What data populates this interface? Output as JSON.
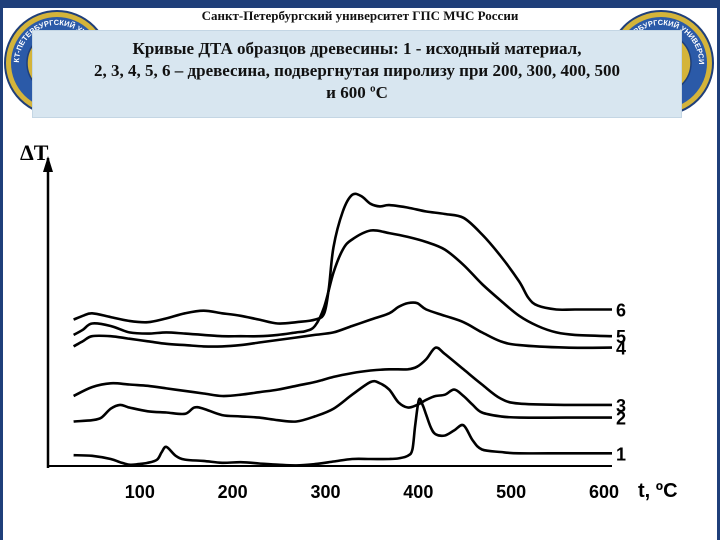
{
  "header": {
    "institution": "Санкт-Петербургский университет ГПС МЧС России"
  },
  "emblems": {
    "left_text": "САНКТ-ПЕТЕРБУРГСКИЙ УНИВЕРСИТЕТ",
    "right_text": "САНКТ-ПЕТЕРБУРГСКИЙ УНИВЕРСИТЕТ"
  },
  "title": {
    "text": "Кривые ДТА образцов древесины: 1 - исходный материал,\n2, 3, 4, 5, 6 – древесина, подвергнутая пиролизу при 200, 300, 400, 500\nи 600 ºС"
  },
  "colors": {
    "frame": "#1f3f7a",
    "title_box": "#d8e6f0",
    "curve": "#000000",
    "emblem_ring": "#2b5aa8",
    "emblem_gold": "#d4b43a"
  },
  "chart_data": {
    "type": "line",
    "title": "",
    "xlabel": "t, ºC",
    "ylabel": "ΔT",
    "xlim": [
      0,
      600
    ],
    "xticks": [
      "100",
      "200",
      "300",
      "400",
      "500",
      "600"
    ],
    "xtick_values": [
      100,
      200,
      300,
      400,
      500,
      600
    ],
    "grid": false,
    "yaxis_numeric": false,
    "series": [
      {
        "name": "1",
        "x": [
          20,
          40,
          60,
          70,
          80,
          90,
          100,
          110,
          115,
          120,
          130,
          140,
          160,
          180,
          200,
          220,
          240,
          260,
          280,
          300,
          320,
          340,
          360,
          370,
          380,
          385,
          388,
          392,
          396,
          400,
          405,
          410,
          420,
          430,
          440,
          450,
          460,
          480,
          500,
          550,
          600
        ],
        "y": [
          0.85,
          0.8,
          0.55,
          0.3,
          0.1,
          0.15,
          0.25,
          0.5,
          1.1,
          1.5,
          0.8,
          0.5,
          0.4,
          0.25,
          0.3,
          0.2,
          0.1,
          0.05,
          0.15,
          0.35,
          0.55,
          0.55,
          0.55,
          0.6,
          0.8,
          1.3,
          3.2,
          5.2,
          4.8,
          4.0,
          3.0,
          2.5,
          2.4,
          2.8,
          3.2,
          2.0,
          1.3,
          1.1,
          1.0,
          1.0,
          1.0
        ]
      },
      {
        "name": "2",
        "x": [
          20,
          40,
          50,
          60,
          70,
          80,
          100,
          120,
          140,
          150,
          160,
          180,
          200,
          220,
          240,
          260,
          280,
          300,
          320,
          340,
          350,
          360,
          370,
          380,
          390,
          400,
          410,
          420,
          430,
          440,
          450,
          460,
          480,
          500,
          550,
          600
        ],
        "y": [
          3.5,
          3.6,
          3.8,
          4.5,
          4.8,
          4.6,
          4.3,
          4.2,
          4.1,
          4.6,
          4.5,
          4.0,
          3.9,
          3.8,
          3.6,
          3.5,
          3.9,
          4.5,
          5.6,
          6.6,
          6.5,
          6.0,
          5.0,
          4.6,
          4.8,
          5.2,
          5.5,
          5.6,
          6.0,
          5.5,
          4.8,
          4.2,
          3.9,
          3.8,
          3.8,
          3.8
        ]
      },
      {
        "name": "3",
        "x": [
          20,
          40,
          60,
          80,
          100,
          120,
          140,
          160,
          180,
          200,
          220,
          240,
          260,
          280,
          300,
          320,
          340,
          360,
          380,
          390,
          400,
          410,
          420,
          440,
          460,
          480,
          500,
          550,
          600
        ],
        "y": [
          5.5,
          6.2,
          6.5,
          6.4,
          6.3,
          6.1,
          5.9,
          5.7,
          5.5,
          5.6,
          5.8,
          6.0,
          6.3,
          6.6,
          7.0,
          7.3,
          7.5,
          7.6,
          7.6,
          7.8,
          8.4,
          9.3,
          8.8,
          7.6,
          6.4,
          5.3,
          4.9,
          4.8,
          4.8
        ]
      },
      {
        "name": "4",
        "x": [
          20,
          30,
          40,
          60,
          80,
          100,
          120,
          140,
          160,
          180,
          200,
          220,
          240,
          260,
          280,
          300,
          320,
          340,
          360,
          370,
          380,
          390,
          400,
          420,
          440,
          460,
          480,
          500,
          550,
          600
        ],
        "y": [
          9.4,
          9.8,
          10.2,
          10.2,
          10.0,
          9.8,
          9.6,
          9.5,
          9.4,
          9.4,
          9.5,
          9.7,
          9.9,
          10.1,
          10.3,
          10.5,
          11.0,
          11.5,
          12.0,
          12.5,
          12.8,
          12.8,
          12.3,
          11.8,
          11.3,
          10.5,
          9.8,
          9.5,
          9.3,
          9.3
        ]
      },
      {
        "name": "5",
        "x": [
          20,
          30,
          40,
          60,
          80,
          100,
          120,
          140,
          160,
          180,
          200,
          220,
          240,
          260,
          270,
          280,
          290,
          300,
          310,
          320,
          340,
          360,
          380,
          400,
          420,
          440,
          460,
          480,
          500,
          520,
          540,
          560,
          600
        ],
        "y": [
          10.3,
          10.7,
          11.2,
          11.0,
          10.5,
          10.4,
          10.5,
          10.4,
          10.3,
          10.2,
          10.2,
          10.2,
          10.3,
          10.5,
          10.6,
          11.0,
          12.5,
          15.2,
          17.0,
          17.8,
          18.5,
          18.3,
          18.0,
          17.6,
          17.0,
          15.8,
          14.3,
          13.0,
          11.8,
          11.0,
          10.5,
          10.3,
          10.2
        ]
      },
      {
        "name": "6",
        "x": [
          20,
          30,
          40,
          60,
          80,
          100,
          120,
          140,
          160,
          180,
          200,
          220,
          240,
          260,
          280,
          290,
          295,
          300,
          310,
          320,
          330,
          340,
          350,
          360,
          380,
          400,
          420,
          440,
          460,
          480,
          500,
          510,
          520,
          540,
          560,
          600
        ],
        "y": [
          11.5,
          11.8,
          12.0,
          11.7,
          11.4,
          11.3,
          11.6,
          12.0,
          12.2,
          12.0,
          11.8,
          11.5,
          11.2,
          11.3,
          11.5,
          12.0,
          14.0,
          17.2,
          20.0,
          21.3,
          21.2,
          20.6,
          20.4,
          20.5,
          20.3,
          20.0,
          19.8,
          19.5,
          18.2,
          16.5,
          14.5,
          13.2,
          12.6,
          12.3,
          12.3,
          12.3
        ]
      }
    ]
  }
}
